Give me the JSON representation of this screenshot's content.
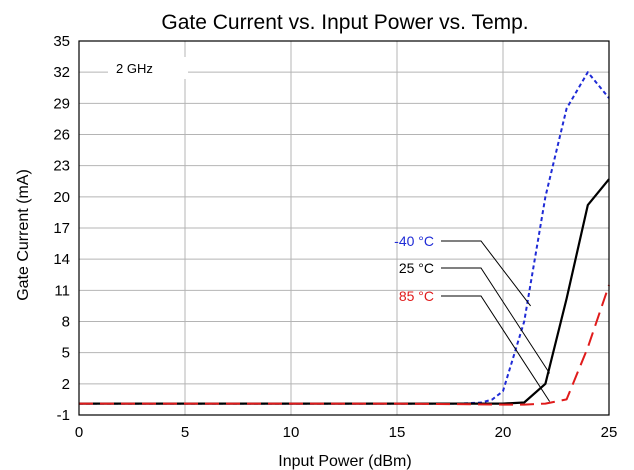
{
  "chart_data": {
    "type": "line",
    "title": "Gate Current vs. Input Power vs. Temp.",
    "xlabel": "Input Power (dBm)",
    "ylabel": "Gate Current (mA)",
    "xlim": [
      0,
      25
    ],
    "ylim": [
      -1,
      35
    ],
    "xticks": [
      0,
      5,
      10,
      15,
      20,
      25
    ],
    "yticks": [
      -1,
      2,
      5,
      8,
      11,
      14,
      17,
      20,
      23,
      26,
      29,
      32,
      35
    ],
    "grid": true,
    "annotation": "2 GHz",
    "series": [
      {
        "name": "-40 °C",
        "color": "#1f2bd6",
        "dash": "dotted",
        "x": [
          0,
          5,
          10,
          15,
          18,
          19,
          19.5,
          20,
          21,
          22,
          23,
          24,
          25
        ],
        "y": [
          0.1,
          0.1,
          0.1,
          0.1,
          0.1,
          0.2,
          0.5,
          1.3,
          8.0,
          20.0,
          28.5,
          32.0,
          29.5
        ]
      },
      {
        "name": "25 °C",
        "color": "#000000",
        "dash": "solid",
        "x": [
          0,
          5,
          10,
          15,
          20,
          21,
          22,
          23,
          24,
          25
        ],
        "y": [
          0.1,
          0.1,
          0.1,
          0.1,
          0.1,
          0.2,
          2.0,
          10.2,
          19.2,
          21.7
        ]
      },
      {
        "name": "85 °C",
        "color": "#e01b1b",
        "dash": "dashed",
        "x": [
          0,
          5,
          10,
          15,
          20,
          21,
          22,
          23,
          24,
          25
        ],
        "y": [
          0.1,
          0.1,
          0.1,
          0.1,
          0.0,
          0.0,
          0.1,
          0.5,
          5.5,
          11.5
        ]
      }
    ]
  }
}
